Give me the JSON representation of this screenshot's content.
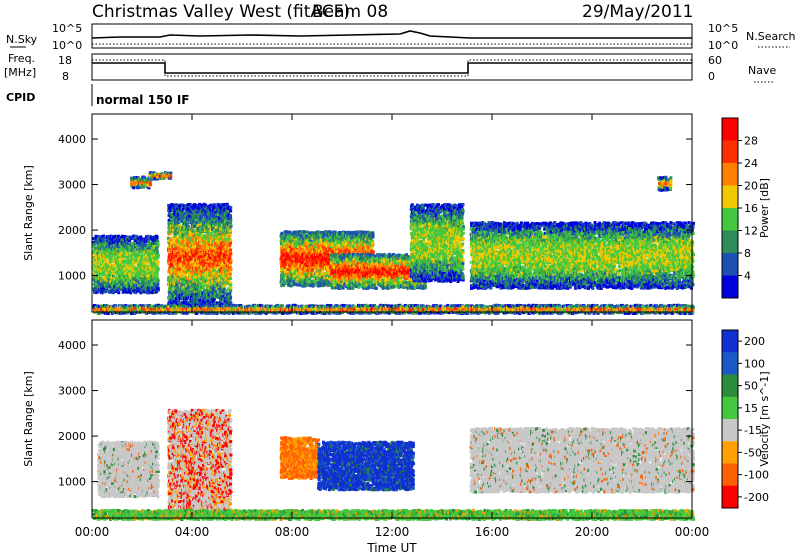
{
  "header": {
    "title": "Christmas Valley West (fitACF)",
    "beam": "Beam 08",
    "date": "29/May/2011"
  },
  "status_panels": {
    "nsky_label": "N.Sky",
    "nsearch_label": "N.Search",
    "noise_ticks": [
      "10^5",
      "10^0"
    ],
    "freq_label": "Freq.",
    "freq_unit": "[MHz]",
    "freq_ticks": [
      "18",
      "8"
    ],
    "nave_label": "Nave",
    "nave_ticks": [
      "60",
      "0"
    ],
    "cpid_label": "CPID",
    "cpid_value": "normal 150 IF"
  },
  "chart_data": [
    {
      "type": "heatmap",
      "panel": "power",
      "ylabel": "Slant Range [km]",
      "xlabel": "",
      "y_ticks": [
        1000,
        2000,
        3000,
        4000
      ],
      "ylim": [
        200,
        4550
      ],
      "x_ticks": [
        "00:00",
        "04:00",
        "08:00",
        "12:00",
        "16:00",
        "20:00",
        "00:00"
      ],
      "xlim": [
        0,
        24
      ],
      "colorbar": {
        "label": "Power [dB]",
        "ticks": [
          "4",
          "8",
          "12",
          "16",
          "20",
          "24",
          "28"
        ],
        "colors": [
          "#0000dd",
          "#1e50b4",
          "#2c8c5a",
          "#44c840",
          "#f0c800",
          "#ff8000",
          "#ff3000",
          "#ff0000"
        ]
      },
      "scatter_regions": [
        {
          "t0": 1.5,
          "t1": 2.3,
          "r0": 2950,
          "r1": 3200
        },
        {
          "t0": 2.2,
          "t1": 3.1,
          "r0": 3150,
          "r1": 3300
        },
        {
          "t0": 0.0,
          "t1": 2.6,
          "r0": 650,
          "r1": 1900
        },
        {
          "t0": 3.0,
          "t1": 5.5,
          "r0": 300,
          "r1": 2600
        },
        {
          "t0": 7.5,
          "t1": 11.2,
          "r0": 800,
          "r1": 2000
        },
        {
          "t0": 9.5,
          "t1": 13.3,
          "r0": 750,
          "r1": 1500
        },
        {
          "t0": 12.7,
          "t1": 14.8,
          "r0": 900,
          "r1": 2600
        },
        {
          "t0": 15.1,
          "t1": 24.0,
          "r0": 750,
          "r1": 2200
        },
        {
          "t0": 22.6,
          "t1": 23.1,
          "r0": 2900,
          "r1": 3200
        },
        {
          "t0": 0.0,
          "t1": 24.0,
          "r0": 200,
          "r1": 380
        }
      ]
    },
    {
      "type": "heatmap",
      "panel": "velocity",
      "ylabel": "Slant Range [km]",
      "xlabel": "Time UT",
      "y_ticks": [
        1000,
        2000,
        3000,
        4000
      ],
      "ylim": [
        200,
        4550
      ],
      "x_ticks": [
        "00:00",
        "04:00",
        "08:00",
        "12:00",
        "16:00",
        "20:00",
        "00:00"
      ],
      "xlim": [
        0,
        24
      ],
      "colorbar": {
        "label": "Velocity [m s^-1]",
        "ticks": [
          "200",
          "100",
          "50",
          "15",
          "-15",
          "-50",
          "-100",
          "-200"
        ],
        "colors": [
          "#1030d0",
          "#1a5ac8",
          "#2a8c3c",
          "#44c840",
          "#c8c8c8",
          "#ffa000",
          "#ff6000",
          "#ff0000"
        ]
      },
      "scatter_regions": [
        {
          "t0": 0.2,
          "t1": 2.6,
          "r0": 700,
          "r1": 1900
        },
        {
          "t0": 3.0,
          "t1": 5.5,
          "r0": 300,
          "r1": 2600
        },
        {
          "t0": 7.5,
          "t1": 9.0,
          "r0": 1100,
          "r1": 2000
        },
        {
          "t0": 9.0,
          "t1": 12.8,
          "r0": 850,
          "r1": 1900
        },
        {
          "t0": 15.1,
          "t1": 24.0,
          "r0": 800,
          "r1": 2200
        },
        {
          "t0": 0.0,
          "t1": 24.0,
          "r0": 200,
          "r1": 400
        }
      ]
    }
  ]
}
